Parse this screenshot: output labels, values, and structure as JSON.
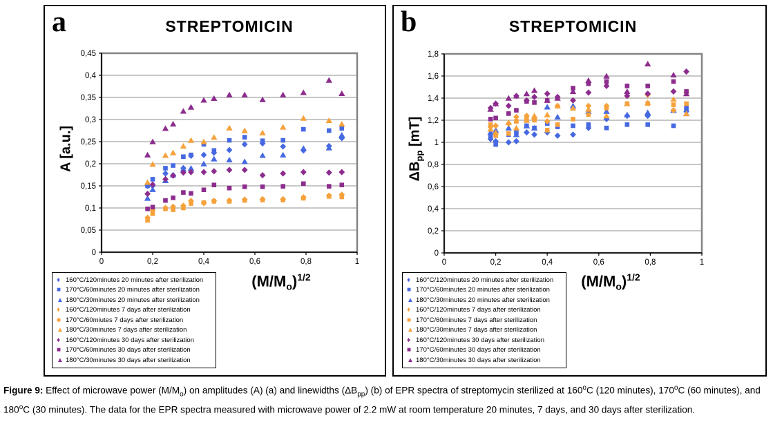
{
  "figure": {
    "caption": {
      "label": "Figure 9:",
      "s1": " Effect of microwave power (M/M",
      "sub1": "o",
      "s2": ") on amplitudes (A) (a) and linewidths (ΔB",
      "sub2": "pp",
      "s3": ") (b) of EPR spectra of streptomycin sterilized at 160",
      "sup1": "o",
      "s4": "C (120 minutes), 170",
      "sup2": "o",
      "s5": "C (60 minutes), and 180",
      "sup3": "o",
      "s6": "C (30 minutes). The data for the EPR spectra measured with microwave power of 2.2 mW at room temperature 20 minutes, 7 days, and 30 days after sterilization."
    }
  },
  "chart_data": [
    {
      "type": "scatter",
      "panel_label": "a",
      "title": "STREPTOMICIN",
      "xlabel": {
        "p1": "(M/M",
        "sub": "o",
        "p2": ")",
        "sup": "1/2"
      },
      "ylabel": {
        "p1": "A [a.u.]",
        "sub": "",
        "p2": ""
      },
      "xlim": [
        0,
        1
      ],
      "ylim": [
        0,
        0.45
      ],
      "xticks": [
        "0",
        "0,2",
        "0,4",
        "0,6",
        "0,8",
        "1"
      ],
      "yticks": [
        "0",
        "0,05",
        "0,1",
        "0,15",
        "0,2",
        "0,25",
        "0,3",
        "0,35",
        "0,4",
        "0,45"
      ],
      "grid": true,
      "legend_position": "bottom-left",
      "x": [
        0.18,
        0.2,
        0.25,
        0.28,
        0.32,
        0.35,
        0.4,
        0.44,
        0.5,
        0.56,
        0.63,
        0.71,
        0.79,
        0.89,
        0.94
      ],
      "series": [
        {
          "name": "160°C/120minutes 20 minutes after sterilization",
          "marker": "diamond",
          "color": "#4669E1",
          "values": [
            0.15,
            0.15,
            0.178,
            0.174,
            0.19,
            0.218,
            0.22,
            0.225,
            0.231,
            0.244,
            0.246,
            0.239,
            0.23,
            0.24,
            0.258
          ]
        },
        {
          "name": "170°C/60minutes 20 minutes after sterilization",
          "marker": "square",
          "color": "#4669E1",
          "values": [
            0.15,
            0.165,
            0.19,
            0.196,
            0.216,
            0.22,
            0.244,
            0.23,
            0.253,
            0.26,
            0.252,
            0.253,
            0.278,
            0.275,
            0.28
          ]
        },
        {
          "name": "180°C/30minutes 20 minutes after sterilization",
          "marker": "triangle",
          "color": "#4669E1",
          "values": [
            0.122,
            0.142,
            0.162,
            0.175,
            0.188,
            0.19,
            0.2,
            0.211,
            0.209,
            0.205,
            0.219,
            0.22,
            0.235,
            0.236,
            0.265
          ]
        },
        {
          "name": "160°C/120minutes 7 days after sterilization",
          "marker": "diamond",
          "color": "#F6A23C",
          "values": [
            0.078,
            0.095,
            0.1,
            0.103,
            0.105,
            0.116,
            0.111,
            0.116,
            0.117,
            0.119,
            0.12,
            0.12,
            0.124,
            0.128,
            0.13
          ]
        },
        {
          "name": "170°C/60miutes 7 days after sterilization",
          "marker": "square",
          "color": "#F6A23C",
          "values": [
            0.072,
            0.087,
            0.098,
            0.096,
            0.1,
            0.11,
            0.112,
            0.115,
            0.115,
            0.117,
            0.118,
            0.118,
            0.122,
            0.126,
            0.125
          ]
        },
        {
          "name": "180°C/30minutes 7 days after sterilization",
          "marker": "triangle",
          "color": "#F6A23C",
          "values": [
            0.158,
            0.199,
            0.219,
            0.225,
            0.24,
            0.253,
            0.25,
            0.26,
            0.281,
            0.275,
            0.27,
            0.283,
            0.303,
            0.298,
            0.29
          ]
        },
        {
          "name": "160°C/120minutes 30 days after sterilization",
          "marker": "diamond",
          "color": "#8C2C8E",
          "values": [
            0.132,
            0.153,
            0.165,
            0.173,
            0.18,
            0.181,
            0.181,
            0.183,
            0.186,
            0.186,
            0.174,
            0.178,
            0.181,
            0.18,
            0.181
          ]
        },
        {
          "name": "170°C/60minutes 30 days after sterilization",
          "marker": "square",
          "color": "#8C2C8E",
          "values": [
            0.098,
            0.102,
            0.117,
            0.123,
            0.135,
            0.133,
            0.141,
            0.152,
            0.145,
            0.148,
            0.148,
            0.149,
            0.155,
            0.149,
            0.152
          ]
        },
        {
          "name": "180°C/30minutes 30 days after sterilization",
          "marker": "triangle",
          "color": "#8C2C8E",
          "values": [
            0.22,
            0.25,
            0.28,
            0.29,
            0.319,
            0.328,
            0.344,
            0.348,
            0.356,
            0.356,
            0.345,
            0.356,
            0.361,
            0.389,
            0.359
          ]
        }
      ]
    },
    {
      "type": "scatter",
      "panel_label": "b",
      "title": "STREPTOMICIN",
      "xlabel": {
        "p1": "(M/M",
        "sub": "o",
        "p2": ")",
        "sup": "1/2"
      },
      "ylabel": {
        "p1": "ΔB",
        "sub": "pp",
        "p2": " [mT]"
      },
      "xlim": [
        0,
        1
      ],
      "ylim": [
        0,
        1.8
      ],
      "xticks": [
        "0",
        "0,2",
        "0,4",
        "0,6",
        "0,8",
        "1"
      ],
      "yticks": [
        "0",
        "0,2",
        "0,4",
        "0,6",
        "0,8",
        "1",
        "1,2",
        "1,4",
        "1,6",
        "1,8"
      ],
      "grid": true,
      "legend_position": "bottom-left",
      "x": [
        0.18,
        0.2,
        0.25,
        0.28,
        0.32,
        0.35,
        0.4,
        0.44,
        0.5,
        0.56,
        0.63,
        0.71,
        0.79,
        0.89,
        0.94
      ],
      "series": [
        {
          "name": "160°C/120minutes 20 minutes after sterilization",
          "marker": "diamond",
          "color": "#4669E1",
          "values": [
            1.03,
            1.01,
            1.0,
            1.01,
            1.09,
            1.07,
            1.09,
            1.06,
            1.07,
            1.13,
            1.21,
            1.24,
            1.24,
            1.29,
            1.28
          ]
        },
        {
          "name": "170°C/60minutes 20 minutes after sterilization",
          "marker": "square",
          "color": "#4669E1",
          "values": [
            1.05,
            0.98,
            1.07,
            1.09,
            1.15,
            1.13,
            1.17,
            1.14,
            1.15,
            1.16,
            1.13,
            1.16,
            1.16,
            1.15,
            1.31
          ]
        },
        {
          "name": "180°C/30minutes 20 minutes after sterilization",
          "marker": "triangle",
          "color": "#4669E1",
          "values": [
            1.09,
            1.11,
            1.13,
            1.07,
            1.15,
            1.13,
            1.32,
            1.23,
            1.33,
            1.28,
            1.28,
            1.25,
            1.27,
            1.29,
            1.26
          ]
        },
        {
          "name": "160°C/120minutes 7 days after sterilization",
          "marker": "diamond",
          "color": "#F6A23C",
          "values": [
            1.14,
            1.15,
            1.17,
            1.23,
            1.24,
            1.21,
            1.19,
            1.33,
            1.38,
            1.33,
            1.33,
            1.42,
            1.43,
            1.29,
            1.45
          ]
        },
        {
          "name": "170°C/60minutes 7 days after sterilization",
          "marker": "square",
          "color": "#F6A23C",
          "values": [
            1.16,
            1.06,
            1.08,
            1.19,
            1.21,
            1.2,
            1.11,
            1.16,
            1.21,
            1.25,
            1.31,
            1.35,
            1.35,
            1.34,
            1.35
          ]
        },
        {
          "name": "180°C/30minutes 7 days after sterilization",
          "marker": "triangle",
          "color": "#F6A23C",
          "values": [
            1.12,
            1.09,
            1.18,
            1.13,
            1.2,
            1.24,
            1.25,
            1.33,
            1.31,
            1.3,
            1.24,
            1.35,
            1.36,
            1.39,
            1.26
          ]
        },
        {
          "name": "160°C/120minutes 30 days after sterilization",
          "marker": "diamond",
          "color": "#8C2C8E",
          "values": [
            1.31,
            1.35,
            1.33,
            1.42,
            1.38,
            1.41,
            1.44,
            1.41,
            1.38,
            1.45,
            1.51,
            1.42,
            1.44,
            1.46,
            1.64
          ]
        },
        {
          "name": "170°C/60minutes 30 days after sterilization",
          "marker": "square",
          "color": "#8C2C8E",
          "values": [
            1.21,
            1.22,
            1.26,
            1.29,
            1.37,
            1.36,
            1.38,
            1.4,
            1.49,
            1.53,
            1.55,
            1.51,
            1.51,
            1.55,
            1.46
          ]
        },
        {
          "name": "180°C/30minutes 30 days after sterilization",
          "marker": "triangle",
          "color": "#8C2C8E",
          "values": [
            1.3,
            1.35,
            1.4,
            1.42,
            1.44,
            1.47,
            1.38,
            1.4,
            1.46,
            1.56,
            1.6,
            1.46,
            1.71,
            1.61,
            1.44
          ]
        }
      ]
    }
  ]
}
